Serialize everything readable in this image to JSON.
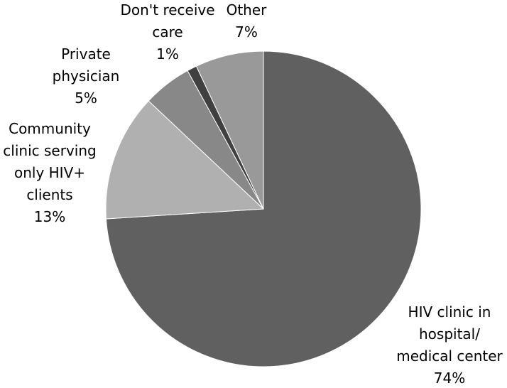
{
  "chart_data": {
    "type": "pie",
    "start_angle_deg": 0,
    "direction": "clockwise",
    "slices": [
      {
        "label": [
          "HIV clinic in",
          "hospital/",
          "medical center"
        ],
        "pct_label": "74%",
        "value": 74,
        "color": "#606060"
      },
      {
        "label": [
          "Community",
          "clinic serving",
          "only HIV+",
          "clients"
        ],
        "pct_label": "13%",
        "value": 13,
        "color": "#b0b0b0"
      },
      {
        "label": [
          "Private",
          "physician"
        ],
        "pct_label": "5%",
        "value": 5,
        "color": "#888888"
      },
      {
        "label": [
          "Don't receive",
          "care"
        ],
        "pct_label": "1%",
        "value": 1,
        "color": "#404040"
      },
      {
        "label": [
          "Other"
        ],
        "pct_label": "7%",
        "value": 7,
        "color": "#999999"
      }
    ]
  }
}
